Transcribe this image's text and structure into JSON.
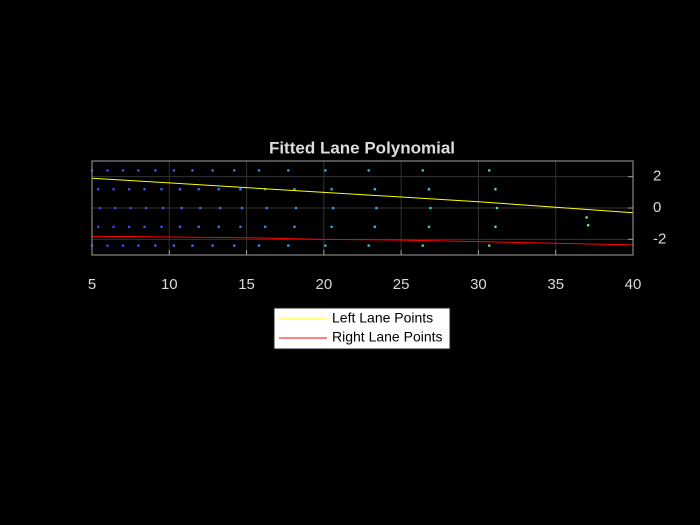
{
  "chart_data": {
    "type": "line",
    "title": "Fitted Lane Polynomial",
    "xlim": [
      5,
      40
    ],
    "xticks": [
      5,
      10,
      15,
      20,
      25,
      30,
      35,
      40
    ],
    "ylim": [
      -3,
      3
    ],
    "yticks": [
      -2,
      0,
      2
    ],
    "y_axis_side": "right",
    "grid": true,
    "legend_location": "south",
    "x": [
      5,
      10,
      15,
      20,
      25,
      30,
      35,
      40
    ],
    "series": [
      {
        "name": "Left Lane Points",
        "color": "#ffff00",
        "values": [
          1.9,
          1.6,
          1.3,
          1.0,
          0.7,
          0.4,
          0.05,
          -0.3
        ]
      },
      {
        "name": "Right Lane Points",
        "color": "#ff0000",
        "values": [
          -1.8,
          -1.85,
          -1.9,
          -2.0,
          -2.05,
          -2.15,
          -2.25,
          -2.35
        ]
      }
    ],
    "point_cloud": {
      "colors": [
        "#3c3cff",
        "#20c0e0",
        "#70ff60"
      ],
      "x": [
        5.0,
        5.4,
        5.5,
        5.4,
        5.0,
        6.0,
        6.4,
        6.5,
        6.4,
        6.0,
        7.0,
        7.4,
        7.5,
        7.4,
        7.0,
        8.0,
        8.4,
        8.5,
        8.4,
        8.0,
        9.1,
        9.5,
        9.6,
        9.5,
        9.1,
        10.3,
        10.7,
        10.8,
        10.7,
        10.3,
        11.5,
        11.9,
        12.0,
        11.9,
        11.5,
        12.8,
        13.2,
        13.3,
        13.2,
        12.8,
        14.2,
        14.6,
        14.7,
        14.6,
        14.2,
        15.8,
        16.2,
        16.3,
        16.2,
        15.8,
        17.7,
        18.1,
        18.2,
        18.1,
        17.7,
        20.1,
        20.5,
        20.6,
        20.5,
        20.1,
        22.9,
        23.3,
        23.4,
        23.3,
        22.9,
        26.4,
        26.8,
        26.9,
        26.8,
        26.4,
        30.7,
        31.1,
        31.2,
        31.1,
        30.7,
        37.0,
        37.1
      ],
      "y": [
        -2.4,
        -1.2,
        0,
        1.2,
        2.4,
        -2.4,
        -1.2,
        0,
        1.2,
        2.4,
        -2.4,
        -1.2,
        0,
        1.2,
        2.4,
        -2.4,
        -1.2,
        0,
        1.2,
        2.4,
        -2.4,
        -1.2,
        0,
        1.2,
        2.4,
        -2.4,
        -1.2,
        0,
        1.2,
        2.4,
        -2.4,
        -1.2,
        0,
        1.2,
        2.4,
        -2.4,
        -1.2,
        0,
        1.2,
        2.4,
        -2.4,
        -1.2,
        0,
        1.2,
        2.4,
        -2.4,
        -1.2,
        0,
        1.2,
        2.4,
        -2.4,
        -1.2,
        0,
        1.2,
        2.4,
        -2.4,
        -1.2,
        0,
        1.2,
        2.4,
        -2.4,
        -1.2,
        0,
        1.2,
        2.4,
        -2.4,
        -1.2,
        0,
        1.2,
        2.4,
        -2.4,
        -1.2,
        0,
        1.2,
        2.4,
        -0.6,
        -1.1
      ]
    }
  }
}
